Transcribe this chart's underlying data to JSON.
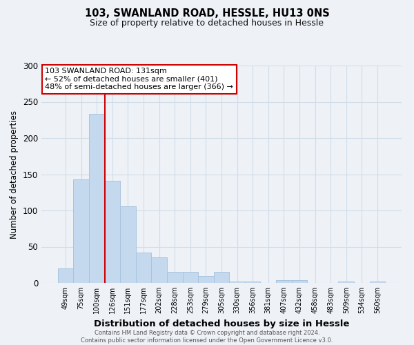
{
  "title": "103, SWANLAND ROAD, HESSLE, HU13 0NS",
  "subtitle": "Size of property relative to detached houses in Hessle",
  "xlabel": "Distribution of detached houses by size in Hessle",
  "ylabel": "Number of detached properties",
  "bar_labels": [
    "49sqm",
    "75sqm",
    "100sqm",
    "126sqm",
    "151sqm",
    "177sqm",
    "202sqm",
    "228sqm",
    "253sqm",
    "279sqm",
    "305sqm",
    "330sqm",
    "356sqm",
    "381sqm",
    "407sqm",
    "432sqm",
    "458sqm",
    "483sqm",
    "509sqm",
    "534sqm",
    "560sqm"
  ],
  "bar_values": [
    20,
    143,
    233,
    141,
    106,
    42,
    35,
    15,
    15,
    10,
    15,
    2,
    2,
    0,
    4,
    4,
    0,
    0,
    2,
    0,
    2
  ],
  "bar_color": "#c5d9ee",
  "bar_edge_color": "#a8c4e0",
  "grid_color": "#d0dce8",
  "bg_color": "#eef2f7",
  "vline_x_index": 3,
  "vline_color": "#cc0000",
  "annotation_line1": "103 SWANLAND ROAD: 131sqm",
  "annotation_line2": "← 52% of detached houses are smaller (401)",
  "annotation_line3": "48% of semi-detached houses are larger (366) →",
  "annotation_box_color": "#ffffff",
  "annotation_border_color": "#cc0000",
  "footer_line1": "Contains HM Land Registry data © Crown copyright and database right 2024.",
  "footer_line2": "Contains public sector information licensed under the Open Government Licence v3.0.",
  "ylim": [
    0,
    300
  ],
  "yticks": [
    0,
    50,
    100,
    150,
    200,
    250,
    300
  ]
}
